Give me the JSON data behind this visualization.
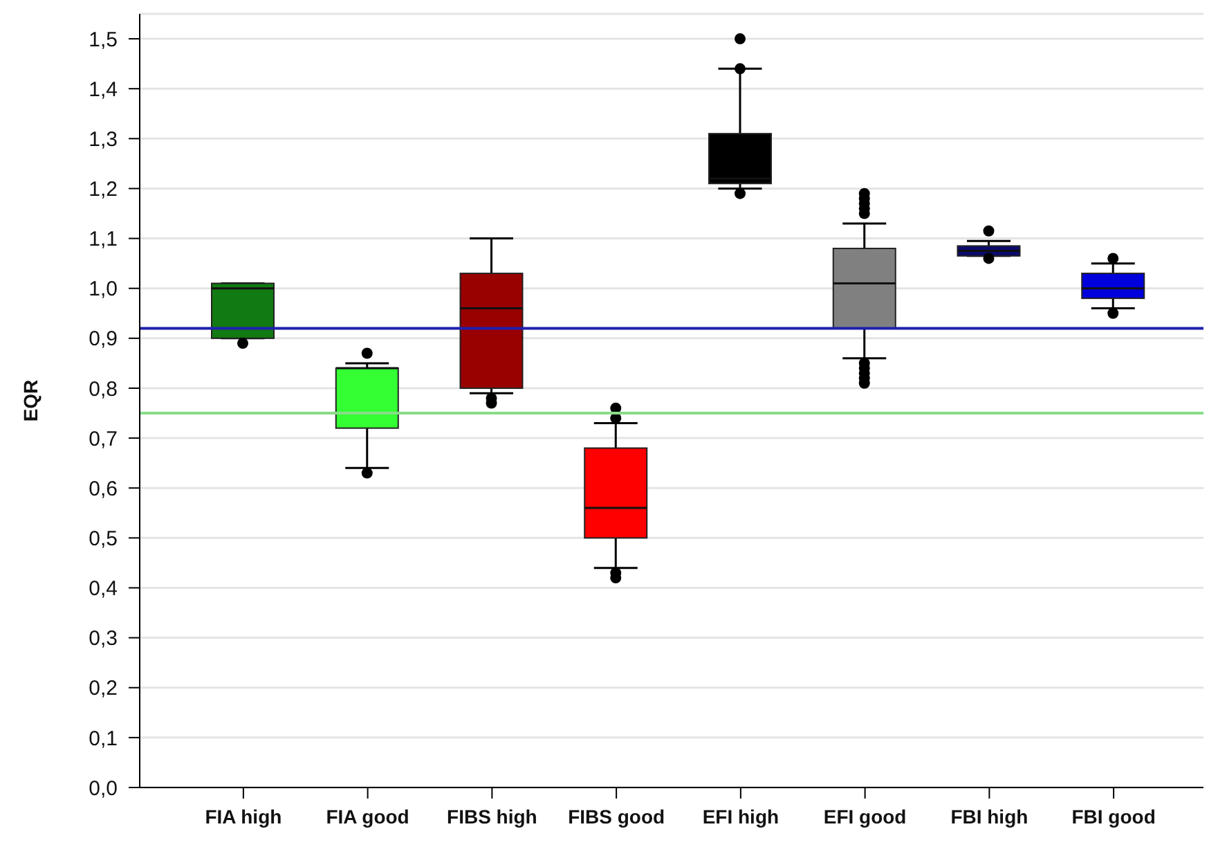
{
  "chart_data": {
    "type": "box",
    "ylabel": "EQR",
    "categories": [
      "FIA high",
      "FIA good",
      "FIBS high",
      "FIBS good",
      "EFI high",
      "EFI good",
      "FBI high",
      "FBI good"
    ],
    "colors": [
      "#127a12",
      "#33ff33",
      "#990000",
      "#ff0000",
      "#000000",
      "#808080",
      "#0a0a6e",
      "#0000dd"
    ],
    "boxes": [
      {
        "low": 0.9,
        "q1": 0.9,
        "median": 1.0,
        "q3": 1.01,
        "high": 1.01,
        "outliers": [
          0.89
        ]
      },
      {
        "low": 0.64,
        "q1": 0.72,
        "median": 0.84,
        "q3": 0.84,
        "high": 0.85,
        "outliers": [
          0.87,
          0.63
        ]
      },
      {
        "low": 0.79,
        "q1": 0.8,
        "median": 0.96,
        "q3": 1.03,
        "high": 1.1,
        "outliers": [
          0.78,
          0.77
        ]
      },
      {
        "low": 0.44,
        "q1": 0.5,
        "median": 0.56,
        "q3": 0.68,
        "high": 0.73,
        "outliers": [
          0.76,
          0.74,
          0.43,
          0.42
        ]
      },
      {
        "low": 1.2,
        "q1": 1.21,
        "median": 1.22,
        "q3": 1.31,
        "high": 1.44,
        "outliers": [
          1.5,
          1.44,
          1.19
        ]
      },
      {
        "low": 0.86,
        "q1": 0.92,
        "median": 1.01,
        "q3": 1.08,
        "high": 1.13,
        "outliers": [
          1.19,
          1.18,
          1.17,
          1.16,
          1.15,
          0.85,
          0.84,
          0.83,
          0.82,
          0.81
        ]
      },
      {
        "low": 1.065,
        "q1": 1.065,
        "median": 1.075,
        "q3": 1.085,
        "high": 1.095,
        "outliers": [
          1.115,
          1.06
        ]
      },
      {
        "low": 0.96,
        "q1": 0.98,
        "median": 1.0,
        "q3": 1.03,
        "high": 1.05,
        "outliers": [
          1.06,
          0.95
        ]
      }
    ],
    "ylim": [
      0,
      1.55
    ],
    "yticks": [
      {
        "value": 0,
        "label": "0,0"
      },
      {
        "value": 0.1,
        "label": "0,1"
      },
      {
        "value": 0.2,
        "label": "0,2"
      },
      {
        "value": 0.3,
        "label": "0,3"
      },
      {
        "value": 0.4,
        "label": "0,4"
      },
      {
        "value": 0.5,
        "label": "0,5"
      },
      {
        "value": 0.6,
        "label": "0,6"
      },
      {
        "value": 0.7,
        "label": "0,7"
      },
      {
        "value": 0.8,
        "label": "0,8"
      },
      {
        "value": 0.9,
        "label": "0,9"
      },
      {
        "value": 1.0,
        "label": "1,0"
      },
      {
        "value": 1.1,
        "label": "1,1"
      },
      {
        "value": 1.2,
        "label": "1,2"
      },
      {
        "value": 1.3,
        "label": "1,3"
      },
      {
        "value": 1.4,
        "label": "1,4"
      },
      {
        "value": 1.5,
        "label": "1,5"
      }
    ],
    "grid": "y",
    "ref_lines": [
      {
        "axis": "y",
        "value": 0.92,
        "color": "#2020b0"
      },
      {
        "axis": "y",
        "value": 0.75,
        "color": "#88dd88"
      }
    ]
  }
}
